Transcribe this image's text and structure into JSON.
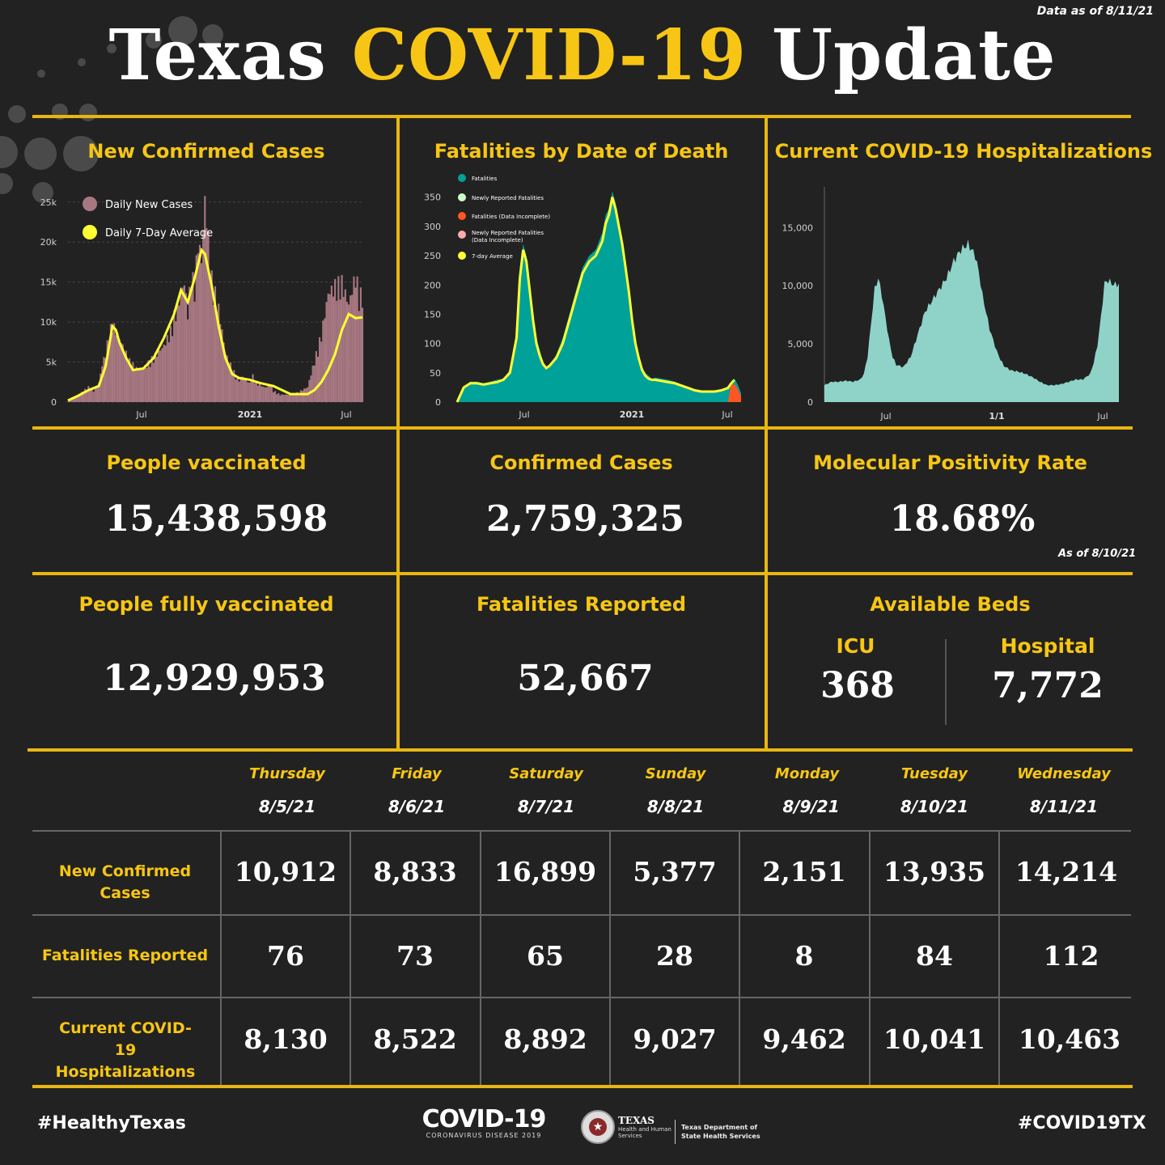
{
  "header": {
    "title_part1": "Texas",
    "title_part2": "COVID-19",
    "title_part3": "Update",
    "data_as_of": "Data as of 8/11/21"
  },
  "colors": {
    "accent": "#f7c614",
    "background": "#222222",
    "cases_bar": "#a87882",
    "fatal_area": "#00a199",
    "hosp_area": "#8fd3c8",
    "avg_line": "#ffff33"
  },
  "chart_data": [
    {
      "type": "bar",
      "title": "New Confirmed Cases",
      "x_ticks": [
        "Jul",
        "2021",
        "Jul"
      ],
      "y_ticks": [
        "0",
        "5k",
        "10k",
        "15k",
        "20k",
        "25k"
      ],
      "ylim": [
        0,
        27000
      ],
      "legend_placement": "top-left",
      "series": [
        {
          "name": "Daily New Cases",
          "color": "#a87882",
          "x_index": [
            0,
            3,
            6,
            9,
            12,
            15,
            18,
            20,
            22,
            24,
            26,
            28,
            30,
            33,
            36,
            40,
            44,
            48,
            52,
            56,
            60,
            62,
            64,
            66,
            68,
            70,
            72,
            74,
            76,
            78,
            80,
            84,
            88,
            92,
            95,
            98,
            100,
            102,
            104,
            106,
            108,
            110,
            112,
            114,
            116,
            118,
            120,
            124,
            128,
            132,
            136,
            140,
            144,
            148,
            152,
            156,
            160,
            164,
            168,
            170,
            172
          ],
          "values": [
            100,
            500,
            1000,
            1500,
            2000,
            1500,
            2500,
            5000,
            6500,
            9000,
            10500,
            9500,
            8500,
            7000,
            5500,
            4500,
            4500,
            5500,
            6500,
            7500,
            9500,
            11500,
            12500,
            14500,
            16000,
            12000,
            17000,
            15500,
            21500,
            19000,
            27000,
            16500,
            12500,
            6500,
            5000,
            3500,
            3000,
            3500,
            3000,
            2500,
            3500,
            2500,
            2500,
            2000,
            2000,
            2500,
            1500,
            1000,
            1000,
            1000,
            1500,
            2000,
            5500,
            9000,
            14500,
            15500,
            16000,
            13000,
            17000,
            14500,
            14200
          ]
        },
        {
          "name": "Daily 7-Day Average",
          "color": "#ffff33",
          "x_index": [
            0,
            6,
            12,
            18,
            22,
            26,
            28,
            30,
            34,
            38,
            44,
            50,
            56,
            62,
            66,
            70,
            74,
            78,
            80,
            84,
            88,
            92,
            96,
            100,
            106,
            112,
            120,
            130,
            140,
            144,
            148,
            152,
            156,
            160,
            164,
            168,
            172
          ],
          "values": [
            200,
            800,
            1500,
            2000,
            4500,
            9500,
            9000,
            7500,
            5500,
            4000,
            4200,
            5500,
            8000,
            11000,
            14000,
            12500,
            15500,
            19000,
            18500,
            14500,
            9500,
            5500,
            3500,
            3000,
            2800,
            2400,
            2000,
            1000,
            1000,
            1500,
            2500,
            4000,
            6000,
            9000,
            11000,
            10500,
            10600
          ]
        }
      ]
    },
    {
      "type": "area",
      "title": "Fatalities by Date of Death",
      "x_ticks": [
        "Jul",
        "2021",
        "Jul"
      ],
      "y_ticks": [
        "0",
        "50",
        "100",
        "150",
        "200",
        "250",
        "300",
        "350"
      ],
      "ylim": [
        0,
        380
      ],
      "legend_placement": "top-left",
      "series": [
        {
          "name": "Fatalities",
          "color": "#00a199",
          "x_index": [
            0,
            4,
            8,
            12,
            16,
            20,
            24,
            28,
            32,
            36,
            38,
            40,
            42,
            44,
            46,
            48,
            50,
            52,
            54,
            56,
            60,
            64,
            68,
            72,
            76,
            80,
            84,
            88,
            90,
            92,
            94,
            96,
            98,
            100,
            102,
            104,
            106,
            108,
            110,
            112,
            114,
            116,
            118,
            120,
            124,
            128,
            132,
            136,
            140,
            144,
            148,
            152,
            156,
            160,
            164,
            166,
            168,
            170,
            172
          ],
          "values": [
            0,
            25,
            35,
            35,
            32,
            35,
            38,
            40,
            55,
            120,
            230,
            270,
            250,
            200,
            150,
            110,
            90,
            70,
            60,
            65,
            80,
            110,
            150,
            190,
            230,
            250,
            260,
            290,
            320,
            330,
            360,
            340,
            310,
            280,
            240,
            200,
            150,
            110,
            80,
            60,
            50,
            45,
            40,
            42,
            40,
            38,
            35,
            30,
            25,
            22,
            20,
            20,
            20,
            22,
            25,
            35,
            40,
            30,
            15
          ]
        },
        {
          "name": "Newly Reported Fatalities",
          "color": "#ccffcc",
          "values": []
        },
        {
          "name": "Fatalities (Data Incomplete)",
          "color": "#ff5522",
          "values": []
        },
        {
          "name": "Newly Reported Fatalities (Data Incomplete)",
          "color": "#ffaaaa",
          "values": []
        },
        {
          "name": "7-day Average",
          "color": "#ffff33",
          "x_index": [
            0,
            4,
            8,
            12,
            16,
            20,
            24,
            28,
            32,
            36,
            38,
            40,
            42,
            44,
            46,
            48,
            50,
            52,
            54,
            56,
            60,
            64,
            68,
            72,
            76,
            80,
            84,
            88,
            90,
            92,
            94,
            96,
            98,
            100,
            102,
            104,
            106,
            108,
            110,
            112,
            114,
            116,
            118,
            120,
            124,
            128,
            132,
            136,
            140,
            144,
            148,
            152,
            156,
            160,
            164,
            166,
            168
          ],
          "values": [
            0,
            25,
            32,
            32,
            30,
            32,
            34,
            38,
            50,
            110,
            210,
            260,
            240,
            190,
            140,
            100,
            80,
            65,
            58,
            62,
            75,
            100,
            140,
            180,
            220,
            240,
            250,
            275,
            305,
            320,
            350,
            330,
            300,
            270,
            230,
            190,
            140,
            100,
            75,
            55,
            45,
            40,
            38,
            38,
            36,
            34,
            32,
            28,
            24,
            20,
            18,
            18,
            18,
            20,
            24,
            32,
            38
          ]
        }
      ]
    },
    {
      "type": "area",
      "title": "Current COVID-19 Hospitalizations",
      "x_ticks": [
        "Jul",
        "1/1",
        "Jul"
      ],
      "y_ticks": [
        "0",
        "5,000",
        "10,000",
        "15,000"
      ],
      "ylim": [
        0,
        18500
      ],
      "series": [
        {
          "name": "",
          "color": "#8fd3c8",
          "x_index": [
            0,
            4,
            8,
            12,
            16,
            20,
            22,
            24,
            26,
            28,
            30,
            32,
            34,
            36,
            38,
            40,
            44,
            48,
            52,
            56,
            60,
            64,
            68,
            72,
            76,
            80,
            84,
            86,
            88,
            90,
            92,
            94,
            96,
            98,
            100,
            104,
            108,
            112,
            116,
            120,
            124,
            128,
            132,
            136,
            140,
            144,
            148,
            150,
            152,
            154,
            156,
            158,
            160,
            162,
            164
          ],
          "values": [
            1500,
            1800,
            1800,
            1900,
            1800,
            2000,
            2500,
            4000,
            7000,
            10000,
            11000,
            9500,
            7500,
            5500,
            4000,
            3300,
            3100,
            4000,
            6000,
            8000,
            9000,
            10000,
            11000,
            12500,
            13500,
            14000,
            13000,
            11500,
            9500,
            8000,
            6500,
            5500,
            4500,
            3800,
            3200,
            2800,
            2700,
            2500,
            2200,
            1800,
            1500,
            1500,
            1600,
            1800,
            2000,
            2000,
            2500,
            3500,
            5000,
            7500,
            10500,
            10800,
            10500,
            10400,
            10463
          ]
        }
      ]
    }
  ],
  "stats": {
    "people_vaccinated": {
      "label": "People vaccinated",
      "value": "15,438,598"
    },
    "confirmed_cases": {
      "label": "Confirmed Cases",
      "value": "2,759,325"
    },
    "positivity": {
      "label": "Molecular Positivity Rate",
      "value": "18.68%",
      "note": "As of 8/10/21"
    },
    "fully_vaccinated": {
      "label": "People fully vaccinated",
      "value": "12,929,953"
    },
    "fatalities": {
      "label": "Fatalities Reported",
      "value": "52,667"
    },
    "beds": {
      "label": "Available Beds",
      "icu_label": "ICU",
      "icu_value": "368",
      "hospital_label": "Hospital",
      "hospital_value": "7,772"
    }
  },
  "table": {
    "days": [
      {
        "day": "Thursday",
        "date": "8/5/21"
      },
      {
        "day": "Friday",
        "date": "8/6/21"
      },
      {
        "day": "Saturday",
        "date": "8/7/21"
      },
      {
        "day": "Sunday",
        "date": "8/8/21"
      },
      {
        "day": "Monday",
        "date": "8/9/21"
      },
      {
        "day": "Tuesday",
        "date": "8/10/21"
      },
      {
        "day": "Wednesday",
        "date": "8/11/21"
      }
    ],
    "rows": [
      {
        "label": "New Confirmed Cases",
        "values": [
          "10,912",
          "8,833",
          "16,899",
          "5,377",
          "2,151",
          "13,935",
          "14,214"
        ]
      },
      {
        "label": "Fatalities Reported",
        "values": [
          "76",
          "73",
          "65",
          "28",
          "8",
          "84",
          "112"
        ]
      },
      {
        "label": "Current COVID-19 Hospitalizations",
        "values": [
          "8,130",
          "8,522",
          "8,892",
          "9,027",
          "9,462",
          "10,041",
          "10,463"
        ]
      }
    ]
  },
  "footer": {
    "left_tag": "#HealthyTexas",
    "covid_logo": "COVID-19",
    "covid_logo_sub": "CORONAVIRUS DISEASE 2019",
    "hhs_logo": "TEXAS",
    "hhs_sub": "Health and Human Services",
    "dshs": "Texas Department of State Health Services",
    "right_tag": "#COVID19TX"
  }
}
